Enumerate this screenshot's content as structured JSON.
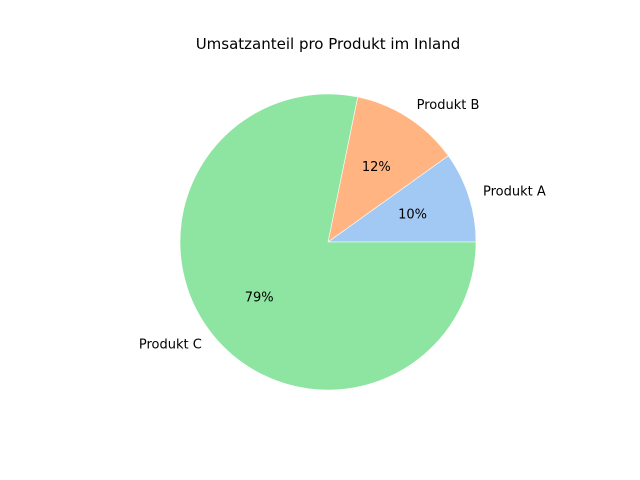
{
  "chart_data": {
    "type": "pie",
    "title": "Umsatzanteil pro Produkt im Inland",
    "categories": [
      "Produkt A",
      "Produkt B",
      "Produkt C"
    ],
    "values": [
      10,
      12,
      79
    ],
    "percent_labels": [
      "10%",
      "12%",
      "79%"
    ],
    "colors": [
      "#a1c9f4",
      "#ffb482",
      "#8de5a1"
    ],
    "start_angle_deg": 0,
    "direction": "counterclockwise",
    "legend": "none"
  }
}
